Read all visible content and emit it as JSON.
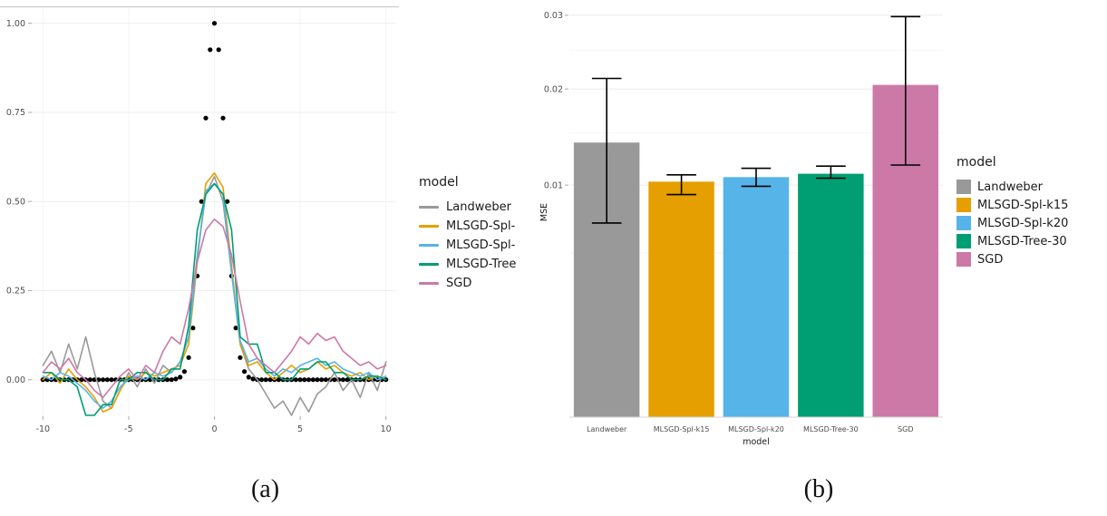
{
  "figure": {
    "caption_a": "(a)",
    "caption_b": "(b)"
  },
  "palette": {
    "landweber": "#999999",
    "mlsgd_spl_k15": "#E69F00",
    "mlsgd_spl_k20": "#56B4E9",
    "mlsgd_tree_30": "#009E73",
    "sgd": "#CC79A7"
  },
  "chart_data": [
    {
      "id": "reconstruction-plot",
      "type": "line",
      "xlim": [
        -10.6,
        10.6
      ],
      "ylim": [
        -0.1,
        1.045
      ],
      "grid": true,
      "x_ticks": [
        {
          "v": -10,
          "label": "-10"
        },
        {
          "v": -5,
          "label": "-5"
        },
        {
          "v": 0,
          "label": "0"
        },
        {
          "v": 5,
          "label": "5"
        },
        {
          "v": 10,
          "label": "10"
        }
      ],
      "y_ticks": [
        {
          "v": 0,
          "label": "0.00"
        },
        {
          "v": 0.25,
          "label": "0.25"
        },
        {
          "v": 0.5,
          "label": "0.50"
        },
        {
          "v": 0.75,
          "label": "0.75"
        },
        {
          "v": 1,
          "label": "1.00"
        }
      ],
      "legend": {
        "title": "model",
        "position": "right",
        "entries": [
          {
            "label": "Landweber",
            "color": "#999999"
          },
          {
            "label": "MLSGD-Spl-",
            "color": "#E69F00"
          },
          {
            "label": "MLSGD-Spl-",
            "color": "#56B4E9"
          },
          {
            "label": "MLSGD-Tree",
            "color": "#009E73"
          },
          {
            "label": "SGD",
            "color": "#CC79A7"
          }
        ]
      },
      "true_function": {
        "name": "true-signal-dots",
        "x_start": -10,
        "x_step": 0.25,
        "y": [
          0,
          0,
          0,
          0,
          0,
          0,
          0,
          0,
          0,
          0,
          0,
          0,
          0,
          0,
          0,
          0,
          0,
          0,
          0,
          0,
          0,
          0,
          0,
          0,
          0,
          0,
          0,
          0,
          0,
          0,
          0,
          0.002,
          0.007,
          0.023,
          0.062,
          0.145,
          0.291,
          0.5,
          0.734,
          0.926,
          1,
          0.926,
          0.734,
          0.5,
          0.291,
          0.145,
          0.062,
          0.023,
          0.007,
          0.002,
          0,
          0,
          0,
          0,
          0,
          0,
          0,
          0,
          0,
          0,
          0,
          0,
          0,
          0,
          0,
          0,
          0,
          0,
          0,
          0,
          0,
          0,
          0,
          0,
          0,
          0,
          0,
          0,
          0,
          0,
          0
        ]
      },
      "series": [
        {
          "name": "Landweber",
          "color": "#999999",
          "x_start": -10,
          "x_step": 0.5,
          "y": [
            0.04,
            0.08,
            0.02,
            0.1,
            0.03,
            0.12,
            0.02,
            -0.06,
            -0.08,
            -0.03,
            0.02,
            -0.02,
            0.03,
            -0.01,
            0.04,
            0.02,
            0.05,
            0.12,
            0.35,
            0.52,
            0.57,
            0.5,
            0.3,
            0.1,
            0.03,
            0.0,
            -0.04,
            -0.08,
            -0.06,
            -0.1,
            -0.05,
            -0.09,
            -0.04,
            -0.02,
            0.02,
            -0.03,
            0.0,
            -0.05,
            0.02,
            -0.03,
            0.05
          ]
        },
        {
          "name": "MLSGD-Spl-k15",
          "color": "#E69F00",
          "x_start": -10,
          "x_step": 0.5,
          "y": [
            0.0,
            0.02,
            -0.01,
            0.03,
            0.0,
            -0.02,
            -0.05,
            -0.09,
            -0.08,
            -0.03,
            0.01,
            0.0,
            0.02,
            0.01,
            0.02,
            0.03,
            0.04,
            0.1,
            0.33,
            0.55,
            0.58,
            0.54,
            0.32,
            0.1,
            0.04,
            0.05,
            0.02,
            0.0,
            0.02,
            0.04,
            0.02,
            0.03,
            0.05,
            0.03,
            0.04,
            0.02,
            0.01,
            0.02,
            0.0,
            0.01,
            0.0
          ]
        },
        {
          "name": "MLSGD-Spl-k20",
          "color": "#56B4E9",
          "x_start": -10,
          "x_step": 0.5,
          "y": [
            0.01,
            0.0,
            0.02,
            0.01,
            -0.01,
            -0.03,
            -0.06,
            -0.08,
            -0.06,
            -0.02,
            0.0,
            0.01,
            0.0,
            0.02,
            0.01,
            0.02,
            0.05,
            0.12,
            0.34,
            0.53,
            0.55,
            0.52,
            0.3,
            0.11,
            0.05,
            0.06,
            0.03,
            0.01,
            0.03,
            0.02,
            0.04,
            0.05,
            0.06,
            0.04,
            0.05,
            0.03,
            0.02,
            0.01,
            0.02,
            0.0,
            0.01
          ]
        },
        {
          "name": "MLSGD-Tree-30",
          "color": "#009E73",
          "x_start": -10,
          "x_step": 0.5,
          "y": [
            0.02,
            0.02,
            0.0,
            0.0,
            -0.02,
            -0.1,
            -0.1,
            -0.07,
            -0.07,
            0.0,
            0.0,
            0.02,
            0.02,
            0.0,
            0.0,
            0.03,
            0.03,
            0.15,
            0.42,
            0.52,
            0.55,
            0.52,
            0.42,
            0.12,
            0.1,
            0.1,
            0.02,
            0.02,
            0.0,
            0.0,
            0.03,
            0.03,
            0.05,
            0.05,
            0.02,
            0.02,
            0.0,
            0.0,
            0.01,
            0.01,
            0.0
          ]
        },
        {
          "name": "SGD",
          "color": "#CC79A7",
          "x_start": -10,
          "x_step": 0.5,
          "y": [
            0.02,
            0.05,
            0.03,
            0.06,
            0.02,
            0.0,
            -0.03,
            -0.05,
            -0.02,
            0.01,
            0.03,
            0.0,
            0.04,
            0.02,
            0.08,
            0.12,
            0.1,
            0.2,
            0.33,
            0.42,
            0.45,
            0.43,
            0.35,
            0.22,
            0.1,
            0.06,
            0.04,
            0.02,
            0.05,
            0.08,
            0.12,
            0.1,
            0.13,
            0.11,
            0.12,
            0.08,
            0.06,
            0.04,
            0.05,
            0.03,
            0.04
          ]
        }
      ]
    },
    {
      "id": "mse-bar-plot",
      "type": "bar",
      "xlabel": "model",
      "ylabel": "MSE",
      "y_scale": "sqrt",
      "ylim": [
        0,
        0.0312
      ],
      "grid": true,
      "y_ticks": [
        {
          "v": 0.01,
          "label": "0.01"
        },
        {
          "v": 0.02,
          "label": "0.02"
        },
        {
          "v": 0.03,
          "label": "0.03"
        }
      ],
      "y_minor_ticks": [
        0.005,
        0.015,
        0.025
      ],
      "categories": [
        "Landweber",
        "MLSGD-Spl-k15",
        "MLSGD-Spl-k20",
        "MLSGD-Tree-30",
        "SGD"
      ],
      "values": [
        0.014,
        0.0103,
        0.0107,
        0.011,
        0.0205
      ],
      "error_low": [
        0.007,
        0.0092,
        0.0099,
        0.0106,
        0.0118
      ],
      "error_high": [
        0.0213,
        0.0109,
        0.0115,
        0.0117,
        0.0298
      ],
      "colors": [
        "#999999",
        "#E69F00",
        "#56B4E9",
        "#009E73",
        "#CC79A7"
      ],
      "legend": {
        "title": "model",
        "position": "right",
        "entries": [
          {
            "label": "Landweber",
            "color": "#999999"
          },
          {
            "label": "MLSGD-Spl-k15",
            "color": "#E69F00"
          },
          {
            "label": "MLSGD-Spl-k20",
            "color": "#56B4E9"
          },
          {
            "label": "MLSGD-Tree-30",
            "color": "#009E73"
          },
          {
            "label": "SGD",
            "color": "#CC79A7"
          }
        ]
      }
    }
  ]
}
